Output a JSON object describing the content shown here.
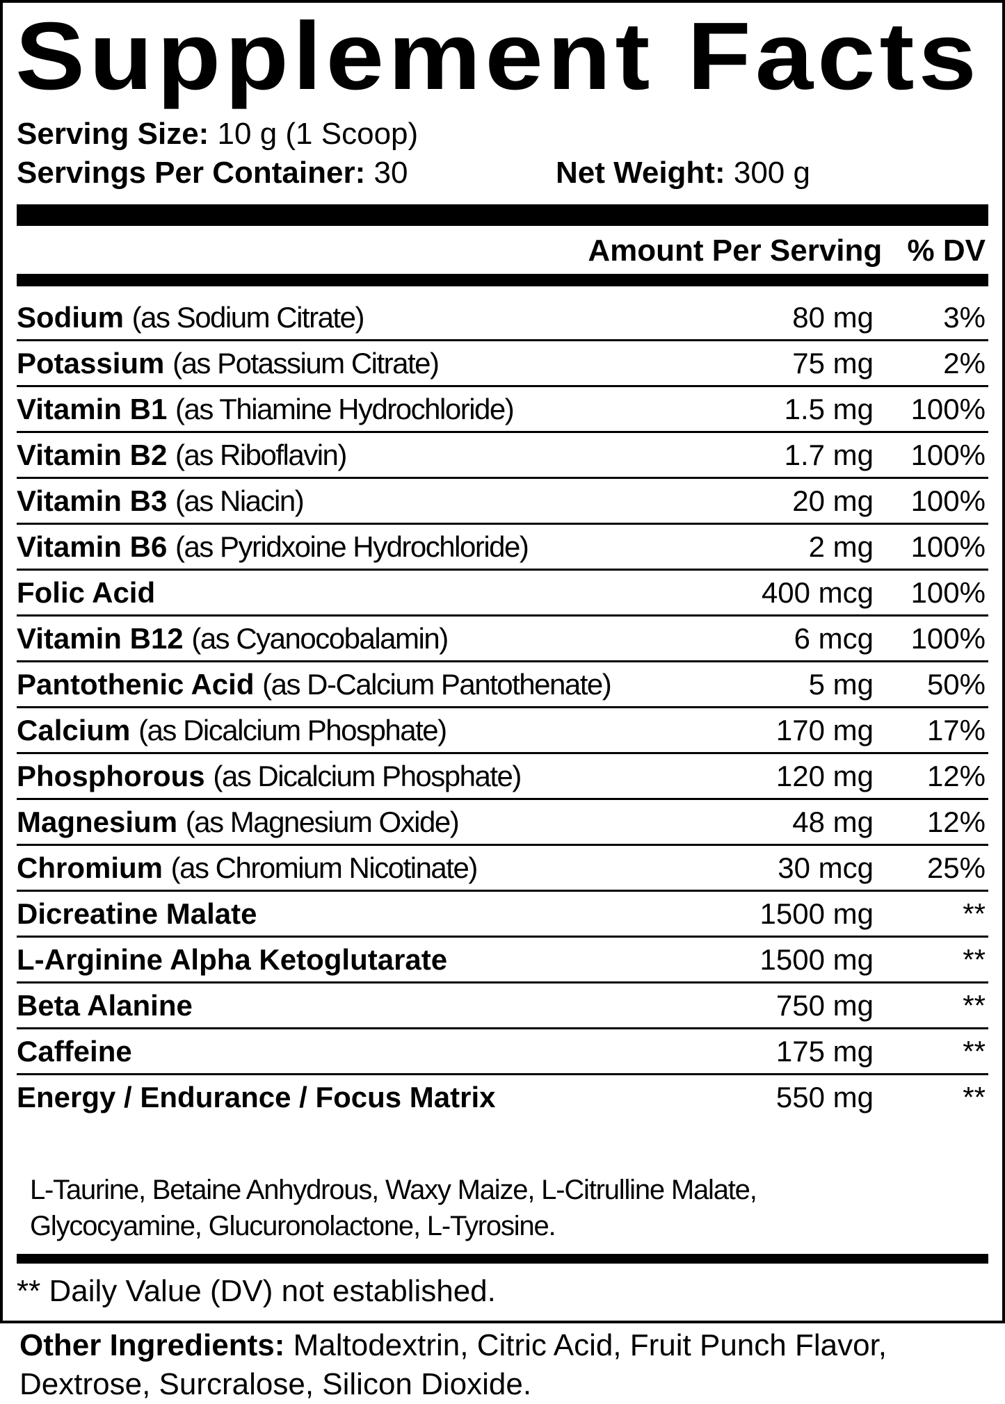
{
  "title": "Supplement Facts",
  "serving_size": {
    "label": "Serving Size:",
    "value": "10 g (1 Scoop)"
  },
  "servings_per_container": {
    "label": "Servings Per Container:",
    "value": "30"
  },
  "net_weight": {
    "label": "Net Weight:",
    "value": "300 g"
  },
  "header": {
    "amount": "Amount Per Serving",
    "dv": "% DV"
  },
  "rows": [
    {
      "name": "Sodium",
      "source": "(as Sodium Citrate)",
      "amount": "80 mg",
      "dv": "3%"
    },
    {
      "name": "Potassium",
      "source": "(as Potassium Citrate)",
      "amount": "75 mg",
      "dv": "2%"
    },
    {
      "name": "Vitamin B1",
      "source": "(as Thiamine Hydrochloride)",
      "amount": "1.5 mg",
      "dv": "100%"
    },
    {
      "name": "Vitamin B2",
      "source": "(as Riboflavin)",
      "amount": "1.7 mg",
      "dv": "100%"
    },
    {
      "name": "Vitamin B3",
      "source": "(as Niacin)",
      "amount": "20 mg",
      "dv": "100%"
    },
    {
      "name": "Vitamin B6",
      "source": "(as Pyridxoine Hydrochloride)",
      "amount": "2 mg",
      "dv": "100%"
    },
    {
      "name": "Folic Acid",
      "source": "",
      "amount": "400 mcg",
      "dv": "100%"
    },
    {
      "name": "Vitamin B12",
      "source": "(as Cyanocobalamin)",
      "amount": "6 mcg",
      "dv": "100%"
    },
    {
      "name": "Pantothenic Acid",
      "source": "(as D-Calcium Pantothenate)",
      "amount": "5 mg",
      "dv": "50%"
    },
    {
      "name": "Calcium",
      "source": "(as Dicalcium Phosphate)",
      "amount": "170 mg",
      "dv": "17%"
    },
    {
      "name": "Phosphorous",
      "source": "(as Dicalcium Phosphate)",
      "amount": "120 mg",
      "dv": "12%"
    },
    {
      "name": "Magnesium",
      "source": "(as Magnesium Oxide)",
      "amount": "48 mg",
      "dv": "12%"
    },
    {
      "name": "Chromium",
      "source": "(as Chromium Nicotinate)",
      "amount": "30 mcg",
      "dv": "25%"
    },
    {
      "name": "Dicreatine Malate",
      "source": "",
      "amount": "1500 mg",
      "dv": "**"
    },
    {
      "name": "L-Arginine Alpha Ketoglutarate",
      "source": "",
      "amount": "1500 mg",
      "dv": "**"
    },
    {
      "name": "Beta Alanine",
      "source": "",
      "amount": "750 mg",
      "dv": "**"
    },
    {
      "name": "Caffeine",
      "source": "",
      "amount": "175 mg",
      "dv": "**"
    },
    {
      "name": "Energy / Endurance / Focus Matrix",
      "source": "",
      "amount": "550 mg",
      "dv": "**"
    }
  ],
  "matrix_ingredients": [
    "L-Taurine, Betaine Anhydrous, Waxy Maize, L-Citrulline Malate,",
    "Glycocyamine, Glucuronolactone, L-Tyrosine."
  ],
  "footnote": "** Daily Value (DV) not established.",
  "other_ingredients": {
    "label": "Other Ingredients:",
    "value": "Maltodextrin, Citric Acid, Fruit Punch Flavor, Dextrose, Surcralose, Silicon Dioxide."
  }
}
